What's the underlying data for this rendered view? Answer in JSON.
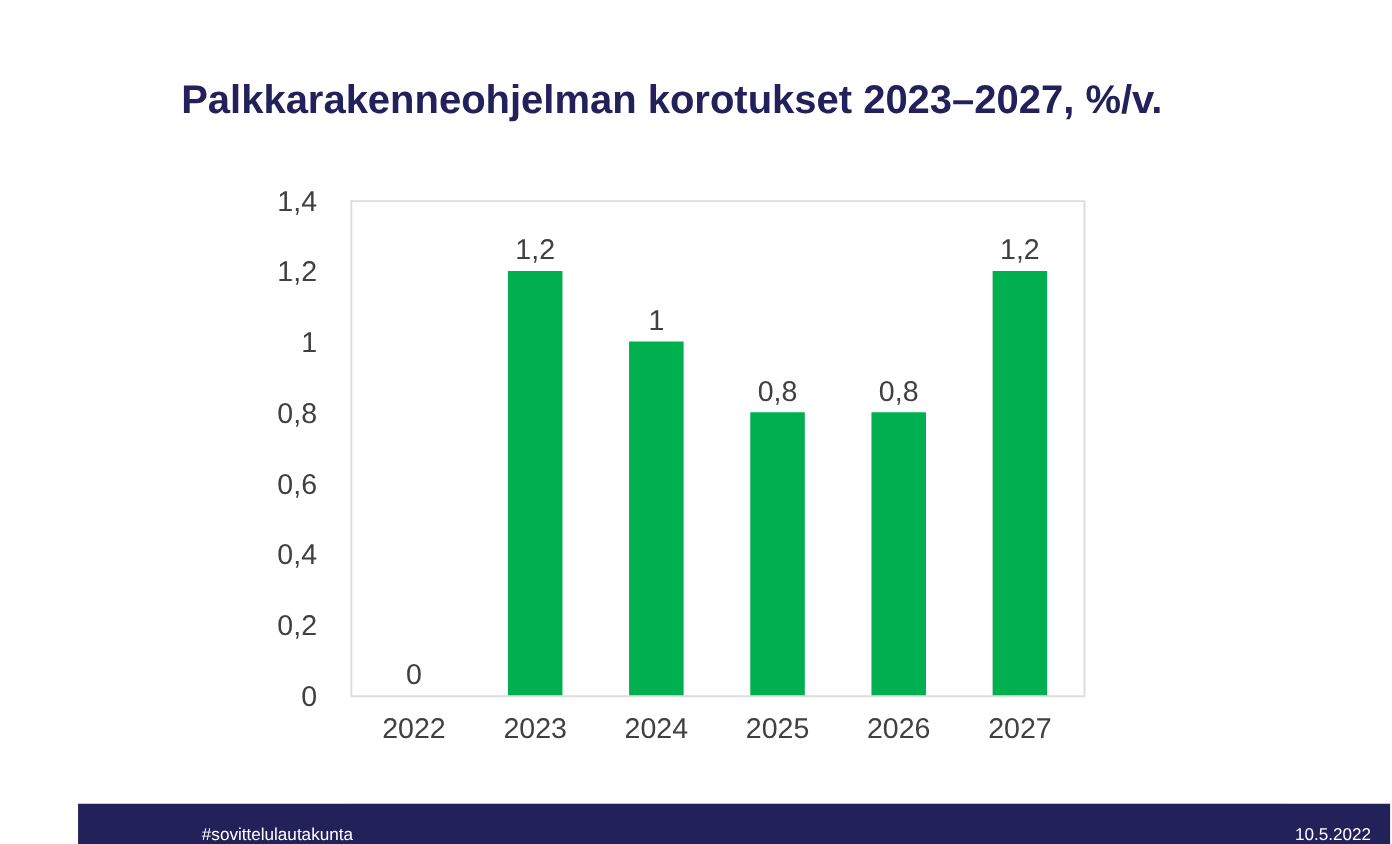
{
  "chart_data": {
    "type": "bar",
    "title": "Palkkarakenneohjelman korotukset 2023–2027, %/v.",
    "categories": [
      "2022",
      "2023",
      "2024",
      "2025",
      "2026",
      "2027"
    ],
    "values": [
      0,
      1.2,
      1,
      0.8,
      0.8,
      1.2
    ],
    "value_labels": [
      "0",
      "1,2",
      "1",
      "0,8",
      "0,8",
      "1,2"
    ],
    "color": "#00b050",
    "ylim": [
      0,
      1.4
    ],
    "yticks": [
      0,
      {
        "value": 0.2,
        "label": "0,2"
      },
      {
        "value": 0.4,
        "label": "0,4"
      },
      {
        "value": 0.6,
        "label": "0,6"
      },
      {
        "value": 0.8,
        "label": "0,8"
      },
      1,
      {
        "value": 1.2,
        "label": "1,2"
      },
      {
        "value": 1.4,
        "label": "1,4"
      }
    ],
    "grid": false,
    "annotations": [
      "#sovittelulautakunta",
      "10.5.2022"
    ]
  }
}
